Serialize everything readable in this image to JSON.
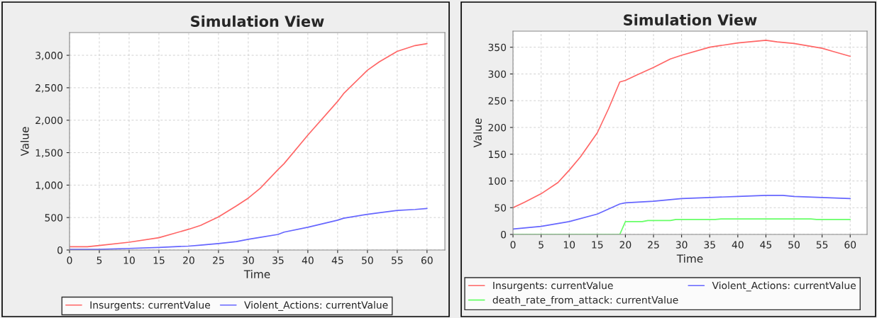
{
  "chart_data": [
    {
      "type": "line",
      "title": "Simulation View",
      "xlabel": "Time",
      "ylabel": "Value",
      "xlim": [
        0,
        63
      ],
      "ylim": [
        0,
        3350
      ],
      "xticks": [
        0,
        5,
        10,
        15,
        20,
        25,
        30,
        35,
        40,
        45,
        50,
        55,
        60
      ],
      "yticks": [
        {
          "value": 0,
          "label": "0"
        },
        {
          "value": 500,
          "label": "500"
        },
        {
          "value": 1000,
          "label": "1,000"
        },
        {
          "value": 1500,
          "label": "1,500"
        },
        {
          "value": 2000,
          "label": "2,000"
        },
        {
          "value": 2500,
          "label": "2,500"
        },
        {
          "value": 3000,
          "label": "3,000"
        }
      ],
      "grid": true,
      "legend": "bottom",
      "x": [
        0,
        3,
        5,
        10,
        15,
        20,
        22,
        25,
        28,
        30,
        32,
        35,
        36,
        40,
        45,
        46,
        50,
        52,
        55,
        58,
        60
      ],
      "series": [
        {
          "name": "Insurgents: currentValue",
          "color": "#ff6666",
          "values": [
            50,
            50,
            70,
            120,
            190,
            320,
            380,
            510,
            680,
            800,
            950,
            1240,
            1330,
            1770,
            2290,
            2410,
            2770,
            2900,
            3060,
            3150,
            3180
          ]
        },
        {
          "name": "Violent_Actions: currentValue",
          "color": "#6666ff",
          "values": [
            10,
            10,
            10,
            25,
            40,
            60,
            75,
            100,
            130,
            165,
            195,
            240,
            275,
            350,
            460,
            490,
            550,
            575,
            610,
            625,
            640
          ]
        }
      ]
    },
    {
      "type": "line",
      "title": "Simulation View",
      "xlabel": "Time",
      "ylabel": "Value",
      "xlim": [
        0,
        63
      ],
      "ylim": [
        0,
        380
      ],
      "xticks": [
        0,
        5,
        10,
        15,
        20,
        25,
        30,
        35,
        40,
        45,
        50,
        55,
        60
      ],
      "yticks": [
        0,
        50,
        100,
        150,
        200,
        250,
        300,
        350
      ],
      "grid": true,
      "legend": "bottom",
      "series": [
        {
          "name": "Insurgents: currentValue",
          "color": "#ff6666",
          "x": [
            0,
            2,
            5,
            8,
            10,
            12,
            15,
            17,
            19,
            20,
            22,
            25,
            28,
            30,
            35,
            40,
            42,
            45,
            47,
            50,
            55,
            57,
            60
          ],
          "values": [
            50,
            60,
            76,
            97,
            120,
            145,
            190,
            235,
            285,
            288,
            298,
            312,
            328,
            335,
            350,
            358,
            360,
            363,
            360,
            357,
            348,
            342,
            333
          ]
        },
        {
          "name": "Violent_Actions: currentValue",
          "color": "#6666ff",
          "x": [
            0,
            5,
            10,
            15,
            19,
            20,
            25,
            30,
            35,
            40,
            45,
            48,
            50,
            55,
            60
          ],
          "values": [
            10,
            15,
            24,
            38,
            57,
            59,
            62,
            67,
            69,
            71,
            73,
            73,
            71,
            69,
            67
          ]
        },
        {
          "name": "death_rate_from_attack: currentValue",
          "color": "#66ff66",
          "x": [
            0,
            19,
            20,
            23,
            24,
            28,
            29,
            36,
            37,
            53,
            54,
            60
          ],
          "values": [
            0,
            0,
            24,
            24,
            26,
            26,
            28,
            28,
            29,
            29,
            28,
            28
          ]
        }
      ]
    }
  ]
}
